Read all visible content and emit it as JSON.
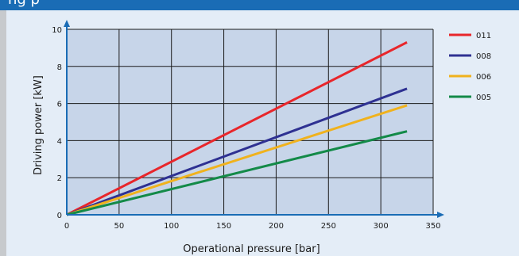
{
  "header": {
    "partial_text": "ng p"
  },
  "colors": {
    "header_bg": "#1a6cb5",
    "plot_bg": "#c7d5e9",
    "axis": "#1a6cb5",
    "grid": "#1a1a1a"
  },
  "chart_data": {
    "type": "line",
    "xlabel": "Operational pressure [bar]",
    "ylabel": "Driving power  [kW]",
    "xlim": [
      0,
      350
    ],
    "ylim": [
      0,
      10
    ],
    "x_ticks": [
      0,
      50,
      100,
      150,
      200,
      250,
      300,
      350
    ],
    "y_ticks": [
      0,
      2,
      4,
      6,
      8,
      10
    ],
    "grid": true,
    "legend_position": "right",
    "series": [
      {
        "name": "011",
        "color": "#e8262b",
        "x": [
          0,
          325
        ],
        "y": [
          0,
          9.3
        ]
      },
      {
        "name": "008",
        "color": "#2e3192",
        "x": [
          0,
          325
        ],
        "y": [
          0,
          6.8
        ]
      },
      {
        "name": "006",
        "color": "#f0b21d",
        "x": [
          0,
          325
        ],
        "y": [
          0,
          5.9
        ]
      },
      {
        "name": "005",
        "color": "#138a48",
        "x": [
          0,
          325
        ],
        "y": [
          0,
          4.5
        ]
      }
    ]
  }
}
